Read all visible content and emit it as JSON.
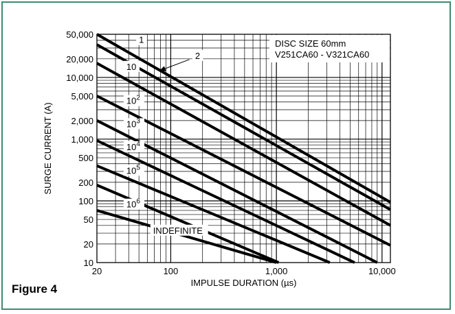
{
  "figure_label": "Figure 4",
  "chart_data": {
    "type": "line",
    "title": "",
    "xlabel": "IMPULSE DURATION (µs)",
    "ylabel": "SURGE CURRENT (A)",
    "xscale": "log",
    "yscale": "log",
    "xlim": [
      20,
      12000
    ],
    "ylim": [
      10,
      50000
    ],
    "grid": true,
    "x_ticks": [
      {
        "value": 20,
        "label": "20"
      },
      {
        "value": 100,
        "label": "100"
      },
      {
        "value": 1000,
        "label": "1,000"
      },
      {
        "value": 10000,
        "label": "10,000"
      }
    ],
    "y_ticks": [
      {
        "value": 50000,
        "label": "50,000"
      },
      {
        "value": 20000,
        "label": "20,000"
      },
      {
        "value": 10000,
        "label": "10,000"
      },
      {
        "value": 5000,
        "label": "5,000"
      },
      {
        "value": 2000,
        "label": "2,000"
      },
      {
        "value": 1000,
        "label": "1,000"
      },
      {
        "value": 500,
        "label": "500"
      },
      {
        "value": 200,
        "label": "200"
      },
      {
        "value": 100,
        "label": "100"
      },
      {
        "value": 50,
        "label": "50"
      },
      {
        "value": 20,
        "label": "20"
      },
      {
        "value": 10,
        "label": "10"
      }
    ],
    "annotation": [
      "DISC SIZE 60mm",
      "V251CA60 - V321CA60"
    ],
    "series": [
      {
        "name": "1",
        "points": [
          [
            20,
            50000
          ],
          [
            12000,
            95
          ]
        ]
      },
      {
        "name": "2",
        "points": [
          [
            20,
            34000
          ],
          [
            12000,
            72
          ]
        ]
      },
      {
        "name": "10",
        "points": [
          [
            20,
            17000
          ],
          [
            12000,
            40
          ]
        ]
      },
      {
        "name": "10^2",
        "points": [
          [
            20,
            5000
          ],
          [
            12000,
            19
          ]
        ]
      },
      {
        "name": "10^3",
        "points": [
          [
            20,
            2000
          ],
          [
            9000,
            10
          ]
        ]
      },
      {
        "name": "10^4",
        "points": [
          [
            20,
            950
          ],
          [
            5500,
            10
          ]
        ]
      },
      {
        "name": "10^5",
        "points": [
          [
            20,
            370
          ],
          [
            3200,
            10
          ]
        ]
      },
      {
        "name": "10^6",
        "points": [
          [
            20,
            180
          ],
          [
            1050,
            10
          ]
        ]
      },
      {
        "name": "INDEFINITE",
        "points": [
          [
            20,
            70
          ],
          [
            1000,
            10
          ]
        ]
      }
    ],
    "curve_labels": [
      {
        "text": "1",
        "sup": "",
        "x": 50,
        "y": 38000
      },
      {
        "text": "2",
        "sup": "",
        "x": 170,
        "y": 21000
      },
      {
        "text": "10",
        "sup": "",
        "x": 38,
        "y": 14000
      },
      {
        "text": "10",
        "sup": "2",
        "x": 38,
        "y": 3900
      },
      {
        "text": "10",
        "sup": "3",
        "x": 38,
        "y": 1650
      },
      {
        "text": "10",
        "sup": "4",
        "x": 38,
        "y": 700
      },
      {
        "text": "10",
        "sup": "5",
        "x": 38,
        "y": 290
      },
      {
        "text": "10",
        "sup": "6",
        "x": 38,
        "y": 82
      },
      {
        "text": "INDEFINITE",
        "sup": "",
        "x": 68,
        "y": 31
      }
    ]
  }
}
